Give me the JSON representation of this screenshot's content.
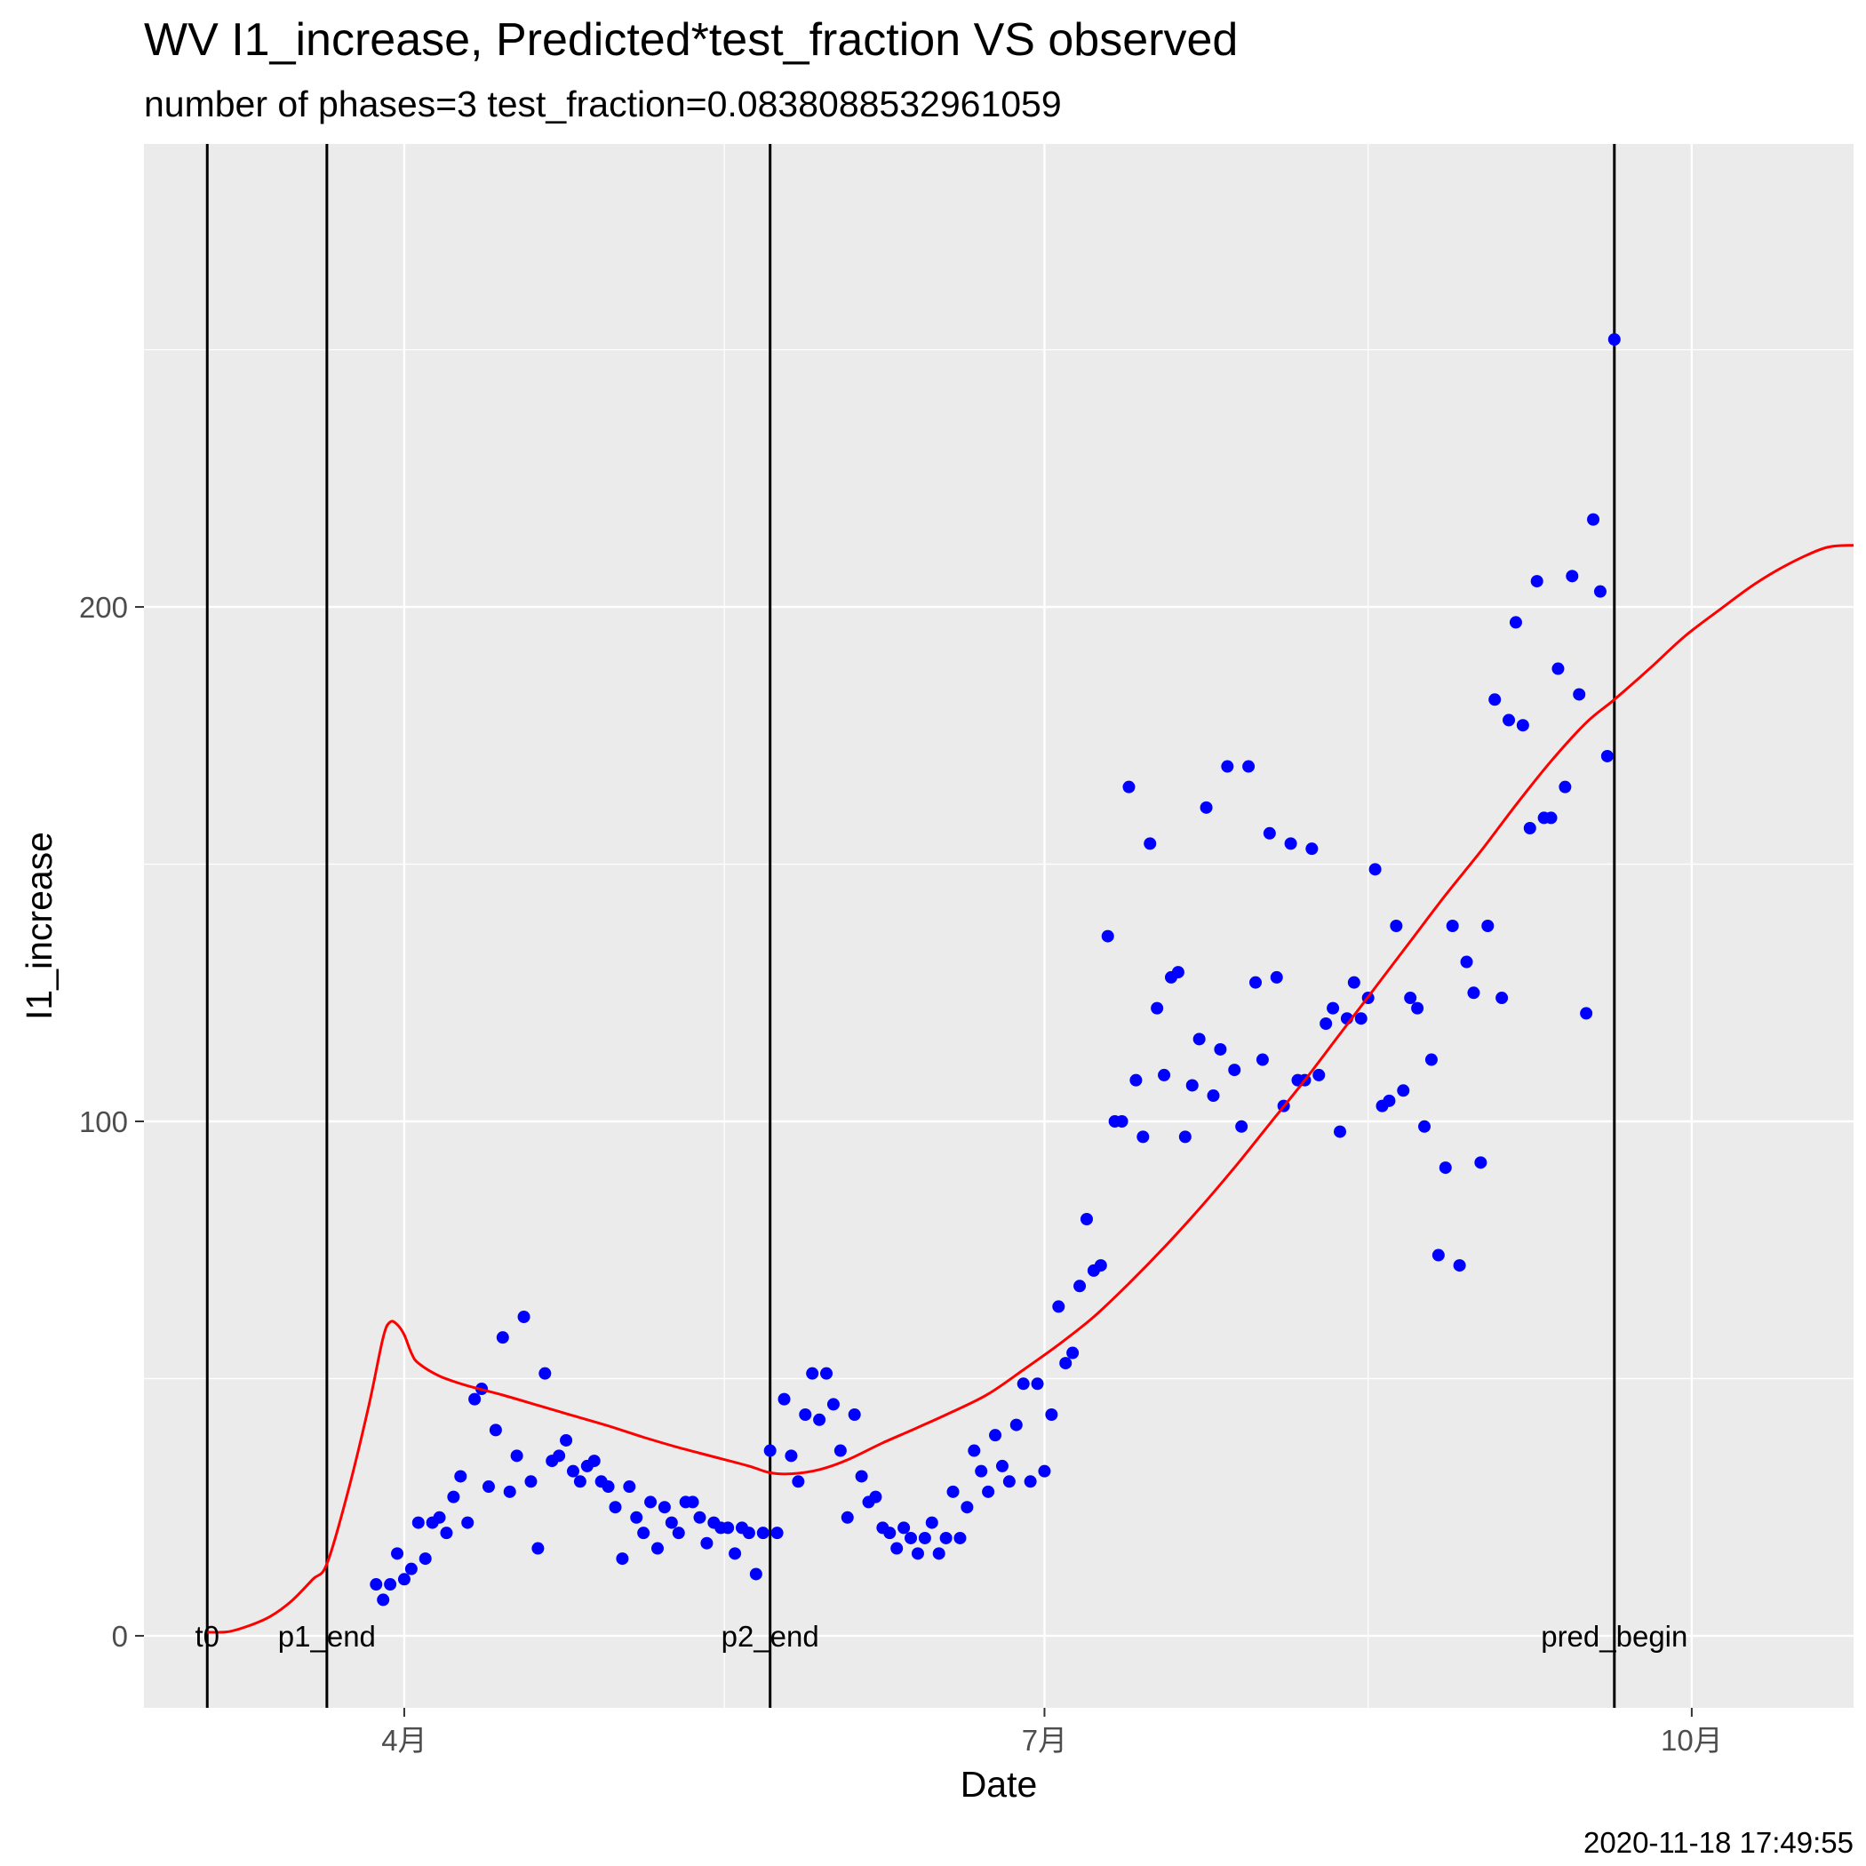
{
  "chart_data": {
    "type": "scatter",
    "title": "WV I1_increase, Predicted*test_fraction VS observed",
    "subtitle": "number of phases=3   test_fraction=0.0838088532961059",
    "xlabel": "Date",
    "ylabel": "I1_increase",
    "caption": "2020-11-18 17:49:55",
    "x_range": [
      "2020-02-24",
      "2020-10-24"
    ],
    "y_range": [
      -14,
      290
    ],
    "x_ticks": [
      {
        "date": "2020-04-01",
        "label": "4月"
      },
      {
        "date": "2020-07-01",
        "label": "7月"
      },
      {
        "date": "2020-10-01",
        "label": "10月"
      }
    ],
    "y_ticks": [
      {
        "value": 0,
        "label": "0"
      },
      {
        "value": 100,
        "label": "100"
      },
      {
        "value": 200,
        "label": "200"
      }
    ],
    "grid": true,
    "phase_lines": [
      {
        "date": "2020-03-04",
        "label": "t0"
      },
      {
        "date": "2020-03-21",
        "label": "p1_end"
      },
      {
        "date": "2020-05-23",
        "label": "p2_end"
      },
      {
        "date": "2020-09-20",
        "label": "pred_begin"
      }
    ],
    "colors": {
      "observed": "#0000ff",
      "predicted": "#ff0000",
      "phase_line": "#000000",
      "panel": "#ebebeb",
      "grid": "#ffffff"
    },
    "series": [
      {
        "kind": "points",
        "points": [
          [
            "2020-03-28",
            10
          ],
          [
            "2020-03-29",
            7
          ],
          [
            "2020-03-30",
            10
          ],
          [
            "2020-03-31",
            16
          ],
          [
            "2020-04-01",
            11
          ],
          [
            "2020-04-02",
            13
          ],
          [
            "2020-04-03",
            22
          ],
          [
            "2020-04-04",
            15
          ],
          [
            "2020-04-05",
            22
          ],
          [
            "2020-04-06",
            23
          ],
          [
            "2020-04-07",
            20
          ],
          [
            "2020-04-08",
            27
          ],
          [
            "2020-04-09",
            31
          ],
          [
            "2020-04-10",
            22
          ],
          [
            "2020-04-11",
            46
          ],
          [
            "2020-04-12",
            48
          ],
          [
            "2020-04-13",
            29
          ],
          [
            "2020-04-14",
            40
          ],
          [
            "2020-04-15",
            58
          ],
          [
            "2020-04-16",
            28
          ],
          [
            "2020-04-17",
            35
          ],
          [
            "2020-04-18",
            62
          ],
          [
            "2020-04-19",
            30
          ],
          [
            "2020-04-20",
            17
          ],
          [
            "2020-04-21",
            51
          ],
          [
            "2020-04-22",
            34
          ],
          [
            "2020-04-23",
            35
          ],
          [
            "2020-04-24",
            38
          ],
          [
            "2020-04-25",
            32
          ],
          [
            "2020-04-26",
            30
          ],
          [
            "2020-04-27",
            33
          ],
          [
            "2020-04-28",
            34
          ],
          [
            "2020-04-29",
            30
          ],
          [
            "2020-04-30",
            29
          ],
          [
            "2020-05-01",
            25
          ],
          [
            "2020-05-02",
            15
          ],
          [
            "2020-05-03",
            29
          ],
          [
            "2020-05-04",
            23
          ],
          [
            "2020-05-05",
            20
          ],
          [
            "2020-05-06",
            26
          ],
          [
            "2020-05-07",
            17
          ],
          [
            "2020-05-08",
            25
          ],
          [
            "2020-05-09",
            22
          ],
          [
            "2020-05-10",
            20
          ],
          [
            "2020-05-11",
            26
          ],
          [
            "2020-05-12",
            26
          ],
          [
            "2020-05-13",
            23
          ],
          [
            "2020-05-14",
            18
          ],
          [
            "2020-05-15",
            22
          ],
          [
            "2020-05-16",
            21
          ],
          [
            "2020-05-17",
            21
          ],
          [
            "2020-05-18",
            16
          ],
          [
            "2020-05-19",
            21
          ],
          [
            "2020-05-20",
            20
          ],
          [
            "2020-05-21",
            12
          ],
          [
            "2020-05-22",
            20
          ],
          [
            "2020-05-23",
            36
          ],
          [
            "2020-05-24",
            20
          ],
          [
            "2020-05-25",
            46
          ],
          [
            "2020-05-26",
            35
          ],
          [
            "2020-05-27",
            30
          ],
          [
            "2020-05-28",
            43
          ],
          [
            "2020-05-29",
            51
          ],
          [
            "2020-05-30",
            42
          ],
          [
            "2020-05-31",
            51
          ],
          [
            "2020-06-01",
            45
          ],
          [
            "2020-06-02",
            36
          ],
          [
            "2020-06-03",
            23
          ],
          [
            "2020-06-04",
            43
          ],
          [
            "2020-06-05",
            31
          ],
          [
            "2020-06-06",
            26
          ],
          [
            "2020-06-07",
            27
          ],
          [
            "2020-06-08",
            21
          ],
          [
            "2020-06-09",
            20
          ],
          [
            "2020-06-10",
            17
          ],
          [
            "2020-06-11",
            21
          ],
          [
            "2020-06-12",
            19
          ],
          [
            "2020-06-13",
            16
          ],
          [
            "2020-06-14",
            19
          ],
          [
            "2020-06-15",
            22
          ],
          [
            "2020-06-16",
            16
          ],
          [
            "2020-06-17",
            19
          ],
          [
            "2020-06-18",
            28
          ],
          [
            "2020-06-19",
            19
          ],
          [
            "2020-06-20",
            25
          ],
          [
            "2020-06-21",
            36
          ],
          [
            "2020-06-22",
            32
          ],
          [
            "2020-06-23",
            28
          ],
          [
            "2020-06-24",
            39
          ],
          [
            "2020-06-25",
            33
          ],
          [
            "2020-06-26",
            30
          ],
          [
            "2020-06-27",
            41
          ],
          [
            "2020-06-28",
            49
          ],
          [
            "2020-06-29",
            30
          ],
          [
            "2020-06-30",
            49
          ],
          [
            "2020-07-01",
            32
          ],
          [
            "2020-07-02",
            43
          ],
          [
            "2020-07-03",
            64
          ],
          [
            "2020-07-04",
            53
          ],
          [
            "2020-07-05",
            55
          ],
          [
            "2020-07-06",
            68
          ],
          [
            "2020-07-07",
            81
          ],
          [
            "2020-07-08",
            71
          ],
          [
            "2020-07-09",
            72
          ],
          [
            "2020-07-10",
            136
          ],
          [
            "2020-07-11",
            100
          ],
          [
            "2020-07-12",
            100
          ],
          [
            "2020-07-13",
            165
          ],
          [
            "2020-07-14",
            108
          ],
          [
            "2020-07-15",
            97
          ],
          [
            "2020-07-16",
            154
          ],
          [
            "2020-07-17",
            122
          ],
          [
            "2020-07-18",
            109
          ],
          [
            "2020-07-19",
            128
          ],
          [
            "2020-07-20",
            129
          ],
          [
            "2020-07-21",
            97
          ],
          [
            "2020-07-22",
            107
          ],
          [
            "2020-07-23",
            116
          ],
          [
            "2020-07-24",
            161
          ],
          [
            "2020-07-25",
            105
          ],
          [
            "2020-07-26",
            114
          ],
          [
            "2020-07-27",
            169
          ],
          [
            "2020-07-28",
            110
          ],
          [
            "2020-07-29",
            99
          ],
          [
            "2020-07-30",
            169
          ],
          [
            "2020-07-31",
            127
          ],
          [
            "2020-08-01",
            112
          ],
          [
            "2020-08-02",
            156
          ],
          [
            "2020-08-03",
            128
          ],
          [
            "2020-08-04",
            103
          ],
          [
            "2020-08-05",
            154
          ],
          [
            "2020-08-06",
            108
          ],
          [
            "2020-08-07",
            108
          ],
          [
            "2020-08-08",
            153
          ],
          [
            "2020-08-09",
            109
          ],
          [
            "2020-08-10",
            119
          ],
          [
            "2020-08-11",
            122
          ],
          [
            "2020-08-12",
            98
          ],
          [
            "2020-08-13",
            120
          ],
          [
            "2020-08-14",
            127
          ],
          [
            "2020-08-15",
            120
          ],
          [
            "2020-08-16",
            124
          ],
          [
            "2020-08-17",
            149
          ],
          [
            "2020-08-18",
            103
          ],
          [
            "2020-08-19",
            104
          ],
          [
            "2020-08-20",
            138
          ],
          [
            "2020-08-21",
            106
          ],
          [
            "2020-08-22",
            124
          ],
          [
            "2020-08-23",
            122
          ],
          [
            "2020-08-24",
            99
          ],
          [
            "2020-08-25",
            112
          ],
          [
            "2020-08-26",
            74
          ],
          [
            "2020-08-27",
            91
          ],
          [
            "2020-08-28",
            138
          ],
          [
            "2020-08-29",
            72
          ],
          [
            "2020-08-30",
            131
          ],
          [
            "2020-08-31",
            125
          ],
          [
            "2020-09-01",
            92
          ],
          [
            "2020-09-02",
            138
          ],
          [
            "2020-09-03",
            182
          ],
          [
            "2020-09-04",
            124
          ],
          [
            "2020-09-05",
            178
          ],
          [
            "2020-09-06",
            197
          ],
          [
            "2020-09-07",
            177
          ],
          [
            "2020-09-08",
            157
          ],
          [
            "2020-09-09",
            205
          ],
          [
            "2020-09-10",
            159
          ],
          [
            "2020-09-11",
            159
          ],
          [
            "2020-09-12",
            188
          ],
          [
            "2020-09-13",
            165
          ],
          [
            "2020-09-14",
            206
          ],
          [
            "2020-09-15",
            183
          ],
          [
            "2020-09-16",
            121
          ],
          [
            "2020-09-17",
            217
          ],
          [
            "2020-09-18",
            203
          ],
          [
            "2020-09-19",
            171
          ],
          [
            "2020-09-20",
            252
          ]
        ]
      },
      {
        "kind": "line",
        "points": [
          [
            "2020-03-04",
            0.7
          ],
          [
            "2020-03-07",
            0.8
          ],
          [
            "2020-03-10",
            2
          ],
          [
            "2020-03-13",
            3.8
          ],
          [
            "2020-03-16",
            6.8
          ],
          [
            "2020-03-19",
            11
          ],
          [
            "2020-03-21",
            14
          ],
          [
            "2020-03-24",
            28
          ],
          [
            "2020-03-27",
            45
          ],
          [
            "2020-03-29",
            58
          ],
          [
            "2020-03-30",
            61
          ],
          [
            "2020-03-31",
            60.5
          ],
          [
            "2020-04-01",
            58.5
          ],
          [
            "2020-04-02",
            55
          ],
          [
            "2020-04-03",
            53
          ],
          [
            "2020-04-06",
            50.5
          ],
          [
            "2020-04-10",
            48.6
          ],
          [
            "2020-04-15",
            46.8
          ],
          [
            "2020-04-20",
            44.8
          ],
          [
            "2020-04-25",
            42.8
          ],
          [
            "2020-04-30",
            40.8
          ],
          [
            "2020-05-05",
            38.6
          ],
          [
            "2020-05-10",
            36.6
          ],
          [
            "2020-05-15",
            34.8
          ],
          [
            "2020-05-20",
            33
          ],
          [
            "2020-05-23",
            31.7
          ],
          [
            "2020-05-26",
            31.5
          ],
          [
            "2020-05-30",
            32.3
          ],
          [
            "2020-06-03",
            34.2
          ],
          [
            "2020-06-08",
            37.5
          ],
          [
            "2020-06-13",
            40.5
          ],
          [
            "2020-06-18",
            43.6
          ],
          [
            "2020-06-23",
            47
          ],
          [
            "2020-06-28",
            51.7
          ],
          [
            "2020-07-03",
            56.6
          ],
          [
            "2020-07-08",
            62
          ],
          [
            "2020-07-13",
            68.5
          ],
          [
            "2020-07-18",
            75.5
          ],
          [
            "2020-07-23",
            83
          ],
          [
            "2020-07-28",
            91
          ],
          [
            "2020-08-02",
            99.5
          ],
          [
            "2020-08-07",
            108
          ],
          [
            "2020-08-12",
            117
          ],
          [
            "2020-08-17",
            126
          ],
          [
            "2020-08-22",
            135
          ],
          [
            "2020-08-27",
            144
          ],
          [
            "2020-09-01",
            152.5
          ],
          [
            "2020-09-06",
            161.5
          ],
          [
            "2020-09-11",
            170
          ],
          [
            "2020-09-16",
            177.5
          ],
          [
            "2020-09-20",
            182
          ],
          [
            "2020-09-25",
            188
          ],
          [
            "2020-09-30",
            194.3
          ],
          [
            "2020-10-05",
            199.5
          ],
          [
            "2020-10-10",
            204.5
          ],
          [
            "2020-10-15",
            208.5
          ],
          [
            "2020-10-20",
            211.5
          ],
          [
            "2020-10-24",
            212
          ]
        ]
      }
    ]
  }
}
